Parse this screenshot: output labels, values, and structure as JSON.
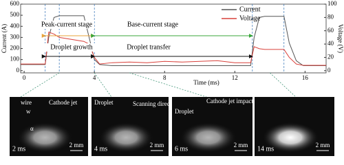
{
  "chart_data": {
    "type": "line",
    "x": [
      -0.2,
      1.2,
      1.4,
      1.7,
      2,
      3.4,
      3.7,
      4,
      4.3,
      5,
      6,
      7,
      8,
      9,
      10,
      11,
      12,
      12.9,
      13.1,
      13.4,
      13.7,
      14.8,
      15.1,
      15.5,
      15.9,
      17.2
    ],
    "series": [
      {
        "name": "Current",
        "color": "#555555",
        "values": [
          55,
          55,
          300,
          480,
          495,
          495,
          300,
          100,
          55,
          45,
          45,
          45,
          45,
          45,
          45,
          45,
          45,
          45,
          300,
          480,
          490,
          490,
          250,
          90,
          45,
          45
        ]
      },
      {
        "name": "Voltage",
        "color": "#d9403a",
        "axis": "y2",
        "values": [
          10,
          10,
          58,
          55,
          50,
          44,
          40,
          20,
          10,
          12,
          13,
          12,
          14,
          13,
          14,
          15,
          12,
          12,
          36,
          33,
          32,
          32,
          20,
          10,
          8,
          8
        ]
      }
    ],
    "xlim": [
      -0.2,
      17.2
    ],
    "xticks": [
      0,
      4,
      8,
      12,
      16
    ],
    "ylim": [
      -20,
      600
    ],
    "yticks": [
      0,
      100,
      200,
      300,
      400,
      500,
      600
    ],
    "y2lim": [
      -3.3,
      100
    ],
    "y2ticks": [
      0,
      20,
      40,
      60,
      80,
      100
    ],
    "xlabel": "Time (ms)",
    "ylabel": "Current (A)",
    "y2label": "Voltage (V)",
    "legend": "upper right",
    "annotations": [
      "Peak-current stage",
      "Base-current stage",
      "Droplet growth",
      "Droplet transfer"
    ]
  },
  "panels": [
    {
      "time": "2 ms",
      "scale": "2 mm",
      "labels": [
        "wire",
        "w",
        "Cathode jet",
        "α"
      ]
    },
    {
      "time": "4 ms",
      "scale": "2 mm",
      "labels": [
        "Droplet",
        "Scanning direction"
      ]
    },
    {
      "time": "6 ms",
      "scale": "2 mm",
      "labels": [
        "Droplet",
        "Cathode jet impacts on droplet"
      ]
    },
    {
      "time": "14 ms",
      "scale": "2 mm",
      "labels": []
    }
  ]
}
